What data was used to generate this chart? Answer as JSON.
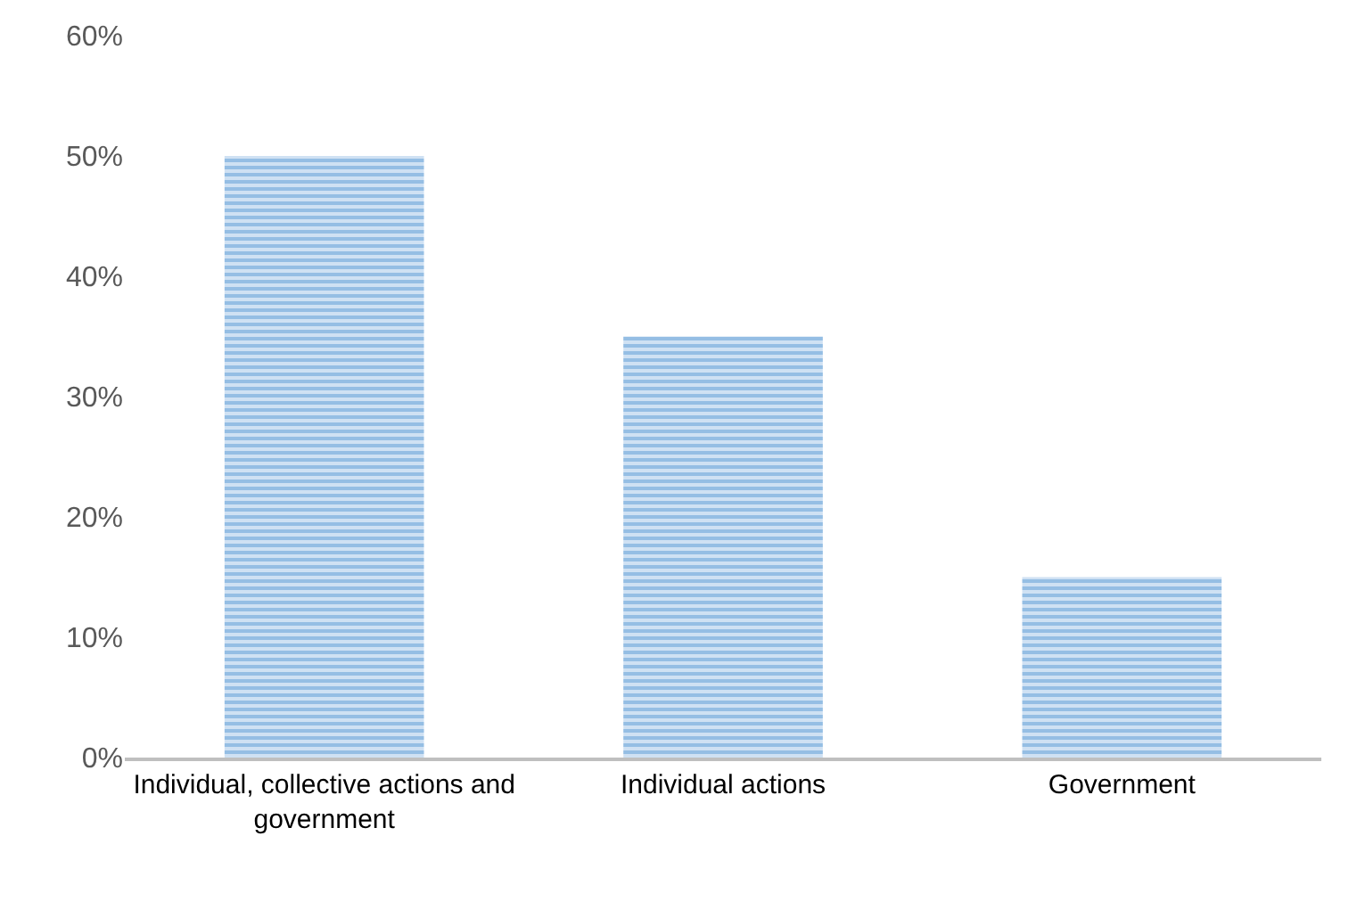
{
  "chart_data": {
    "type": "bar",
    "categories": [
      "Individual, collective actions and government",
      "Individual actions",
      "Government"
    ],
    "values": [
      50,
      35,
      15
    ],
    "color": "#5b9bd5",
    "ylim": [
      0,
      60
    ],
    "yticks": [
      {
        "value": 0,
        "label": "0%"
      },
      {
        "value": 10,
        "label": "10%"
      },
      {
        "value": 20,
        "label": "20%"
      },
      {
        "value": 30,
        "label": "30%"
      },
      {
        "value": 40,
        "label": "40%"
      },
      {
        "value": 50,
        "label": "50%"
      },
      {
        "value": 60,
        "label": "60%"
      }
    ]
  }
}
